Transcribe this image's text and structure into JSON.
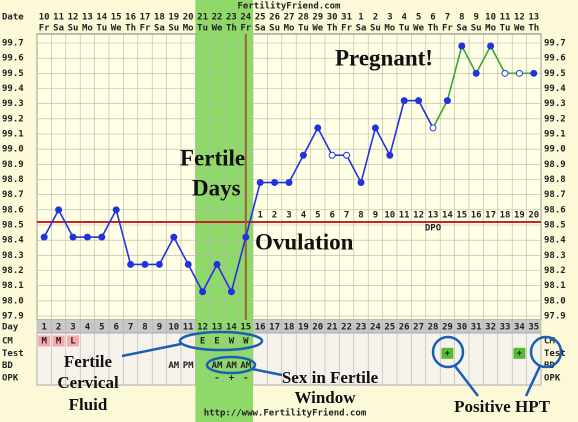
{
  "chart_data": {
    "type": "line",
    "title": "FertilityFriend.com",
    "footer": "http://www.FertilityFriend.com",
    "date_label": "Date",
    "day_label": "Day",
    "categories": [
      1,
      2,
      3,
      4,
      5,
      6,
      7,
      8,
      9,
      10,
      11,
      12,
      13,
      14,
      15,
      16,
      17,
      18,
      19,
      20,
      21,
      22,
      23,
      24,
      25,
      26,
      27,
      28,
      29,
      30,
      31,
      32,
      33,
      34,
      35
    ],
    "dates": [
      "10",
      "11",
      "12",
      "13",
      "14",
      "15",
      "16",
      "17",
      "18",
      "19",
      "20",
      "21",
      "22",
      "23",
      "24",
      "25",
      "26",
      "27",
      "28",
      "29",
      "30",
      "31",
      "1",
      "2",
      "3",
      "4",
      "5",
      "6",
      "7",
      "8",
      "9",
      "10",
      "11",
      "12",
      "13"
    ],
    "weekdays": [
      "Fr",
      "Sa",
      "Su",
      "Mo",
      "Tu",
      "We",
      "Th",
      "Fr",
      "Sa",
      "Su",
      "Mo",
      "Tu",
      "We",
      "Th",
      "Fr",
      "Sa",
      "Su",
      "Mo",
      "Tu",
      "We",
      "Th",
      "Fr",
      "Sa",
      "Su",
      "Mo",
      "Tu",
      "We",
      "Th",
      "Fr",
      "Sa",
      "Su",
      "Mo",
      "Tu",
      "We",
      "Th"
    ],
    "series": [
      {
        "color": "#2233dd",
        "values": [
          98.42,
          98.6,
          98.42,
          98.42,
          98.42,
          98.6,
          98.24,
          98.24,
          98.24,
          98.42,
          98.24,
          98.06,
          98.24,
          98.06,
          98.42,
          98.78,
          98.78,
          98.78,
          98.96,
          99.14,
          98.96,
          98.96,
          98.78,
          99.14,
          98.96,
          99.32,
          99.32,
          99.14,
          99.32,
          99.68,
          99.5,
          99.68,
          99.5,
          99.5,
          99.5
        ]
      }
    ],
    "open_points": [
      21,
      22,
      28,
      33,
      34
    ],
    "highlight": {
      "from_day": 28,
      "color": "#33aa33"
    },
    "ylim": [
      97.9,
      99.7
    ],
    "yticks": [
      99.7,
      99.6,
      99.5,
      99.4,
      99.3,
      99.2,
      99.1,
      {
        "value": 99,
        "label": "99.0"
      },
      98.9,
      98.8,
      98.7,
      98.6,
      98.5,
      98.4,
      98.3,
      98.2,
      98.1,
      {
        "value": 98,
        "label": "98.0"
      },
      97.9
    ],
    "grid": true,
    "coverline": 98.52,
    "coverline_color": "#cc2222",
    "ovulation_day": 15,
    "ovulation_color": "#996633",
    "fertile_window": {
      "start": 12,
      "end": 15,
      "color": "#8fd86a"
    },
    "dpo": {
      "label": "DPO",
      "values": [
        1,
        2,
        3,
        4,
        5,
        6,
        7,
        8,
        9,
        10,
        11,
        12,
        13,
        14,
        15,
        16,
        17,
        18,
        19,
        20
      ]
    },
    "rows": [
      {
        "label": "CM",
        "entries": [
          "M",
          "M",
          "L",
          null,
          null,
          null,
          null,
          null,
          null,
          null,
          null,
          "E",
          "E",
          "W",
          "W",
          null,
          null,
          null,
          null,
          null,
          null,
          null,
          null,
          null,
          null,
          null,
          null,
          null,
          null,
          null,
          null,
          null,
          null,
          null,
          null
        ],
        "highlight_entries": [
          "M",
          "L"
        ],
        "highlight_color": "#f5a9a9"
      },
      {
        "label": "Test",
        "entries": [
          null,
          null,
          null,
          null,
          null,
          null,
          null,
          null,
          null,
          null,
          null,
          null,
          null,
          null,
          null,
          null,
          null,
          null,
          null,
          null,
          null,
          null,
          null,
          null,
          null,
          null,
          null,
          null,
          "+",
          null,
          null,
          null,
          null,
          "+",
          null
        ],
        "highlight_entries": [
          "+"
        ],
        "highlight_color": "#55bb33"
      },
      {
        "label": "BD",
        "entries": [
          null,
          null,
          null,
          null,
          null,
          null,
          null,
          null,
          null,
          "AM",
          "PM",
          null,
          "AM",
          "AM",
          "AM",
          null,
          null,
          null,
          null,
          null,
          null,
          null,
          null,
          null,
          null,
          null,
          null,
          null,
          null,
          null,
          null,
          null,
          null,
          null,
          null
        ]
      },
      {
        "label": "OPK",
        "entries": [
          null,
          null,
          null,
          null,
          null,
          null,
          null,
          null,
          null,
          null,
          null,
          null,
          "-",
          "+",
          "-",
          null,
          null,
          null,
          null,
          null,
          null,
          null,
          null,
          null,
          null,
          null,
          null,
          null,
          null,
          null,
          null,
          null,
          null,
          null,
          null
        ]
      }
    ],
    "annotations": {
      "pregnant": "Pregnant!",
      "fertile_days": [
        "Fertile",
        "Days"
      ],
      "ovulation": "Ovulation",
      "cervical_fluid": [
        "Fertile",
        "Cervical",
        "Fluid"
      ],
      "sex_window": [
        "Sex in Fertile",
        "Window"
      ],
      "positive_hpt": "Positive HPT"
    }
  }
}
